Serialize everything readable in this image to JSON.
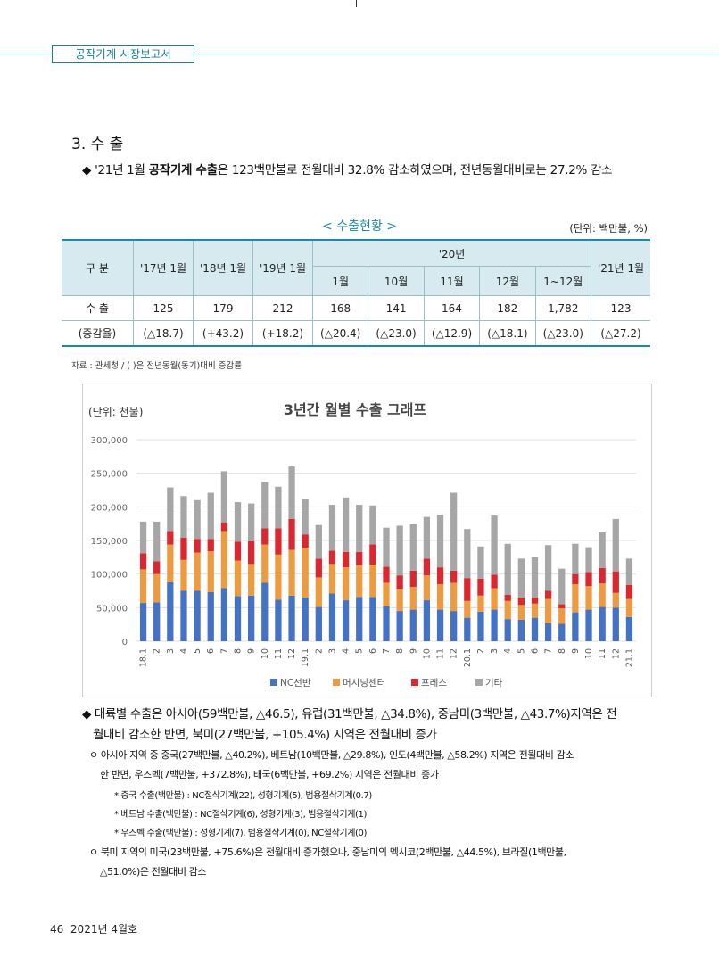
{
  "header": {
    "label": "공작기계 시장보고서"
  },
  "section": {
    "title": "3. 수 출"
  },
  "summary": {
    "prefix": "◆ '21년 1월 ",
    "bold": "공작기계 수출",
    "rest": "은 123백만불로 전월대비 32.8% 감소하였으며, 전년동월대비로는 27.2% 감소"
  },
  "table": {
    "caption": "< 수출현황 >",
    "unit": "(단위: 백만불, %)",
    "col_group": "구 분",
    "years": [
      "'17년 1월",
      "'18년 1월",
      "'19년 1월"
    ],
    "group_2020": "'20년",
    "months_2020": [
      "1월",
      "10월",
      "11월",
      "12월",
      "1~12월"
    ],
    "last_col": "'21년 1월",
    "rows": [
      {
        "label": "수 출",
        "values": [
          "125",
          "179",
          "212",
          "168",
          "141",
          "164",
          "182",
          "1,782",
          "123"
        ]
      },
      {
        "label": "(증감율)",
        "values": [
          "(△18.7)",
          "(+43.2)",
          "(+18.2)",
          "(△20.4)",
          "(△23.0)",
          "(△12.9)",
          "(△18.1)",
          "(△23.0)",
          "(△27.2)"
        ]
      }
    ],
    "source": "자료 : 관세청 / ( )은 전년동월(동기)대비 증감률"
  },
  "chart_data": {
    "type": "bar",
    "stacked": true,
    "title": "3년간 월별 수출 그래프",
    "unit_label": "(단위: 천불)",
    "categories": [
      "18.1",
      "2",
      "3",
      "4",
      "5",
      "6",
      "7",
      "8",
      "9",
      "10",
      "11",
      "12",
      "19.1",
      "2",
      "3",
      "4",
      "5",
      "6",
      "7",
      "8",
      "9",
      "10",
      "11",
      "12",
      "20.1",
      "2",
      "3",
      "4",
      "5",
      "6",
      "7",
      "8",
      "9",
      "10",
      "11",
      "12",
      "21.1"
    ],
    "y_ticks": [
      "300,000",
      "250,000",
      "200,000",
      "150,000",
      "100,000",
      "50,000",
      "0"
    ],
    "ylim": [
      0,
      300000
    ],
    "series": [
      {
        "name": "NC선반",
        "color": "#4472c4",
        "values": [
          57000,
          58000,
          88000,
          75000,
          75000,
          73000,
          79000,
          67000,
          68000,
          87000,
          62000,
          68000,
          65000,
          51000,
          71000,
          61000,
          66000,
          66000,
          52000,
          45000,
          47000,
          61000,
          47000,
          45000,
          35000,
          44000,
          47000,
          33000,
          32000,
          35000,
          27000,
          26000,
          43000,
          47000,
          51000,
          50000,
          36000
        ]
      },
      {
        "name": "머시닝센터",
        "color": "#ed9b40",
        "values": [
          50000,
          42000,
          56000,
          46000,
          57000,
          61000,
          85000,
          53000,
          47000,
          57000,
          67000,
          68000,
          74000,
          44000,
          44000,
          49000,
          47000,
          48000,
          35000,
          33000,
          34000,
          37000,
          38000,
          42000,
          25000,
          24000,
          32000,
          27000,
          22000,
          21000,
          36000,
          23000,
          42000,
          35000,
          35000,
          22000,
          27000
        ]
      },
      {
        "name": "프레스",
        "color": "#d9282f",
        "values": [
          24000,
          19000,
          20000,
          33000,
          20000,
          18000,
          13000,
          28000,
          34000,
          24000,
          39000,
          46000,
          20000,
          28000,
          20000,
          23000,
          20000,
          30000,
          24000,
          20000,
          24000,
          25000,
          25000,
          18000,
          34000,
          25000,
          20000,
          9000,
          11000,
          9000,
          12000,
          6000,
          15000,
          21000,
          23000,
          32000,
          21000
        ]
      },
      {
        "name": "기타",
        "color": "#a6a6a6",
        "values": [
          47000,
          59000,
          65000,
          62000,
          58000,
          69000,
          76000,
          59000,
          56000,
          69000,
          62000,
          78000,
          52000,
          50000,
          68000,
          81000,
          70000,
          58000,
          58000,
          74000,
          69000,
          62000,
          78000,
          116000,
          73000,
          48000,
          88000,
          76000,
          58000,
          60000,
          68000,
          53000,
          45000,
          37000,
          53000,
          78000,
          39000
        ]
      }
    ]
  },
  "body": {
    "region_bullet_line1": "◆ 대륙별 수출은 아시아(59백만불, △46.5), 유럽(31백만불, △34.8%), 중남미(3백만불, △43.7%)지역은 전",
    "region_bullet_line2": "월대비 감소한 반면, 북미(27백만불, +105.4%) 지역은 전월대비 증가",
    "asia_line1": "ㅇ 아시아 지역 중 중국(27백만불, △40.2%), 베트남(10백만불, △29.8%), 인도(4백만불, △58.2%) 지역은 전월대비 감소",
    "asia_line2": "한 반면, 우즈벡(7백만불, +372.8%), 태국(6백만불, +69.2%) 지역은 전월대비 증가",
    "note_china": "* 중국 수출(백만불) : NC절삭기계(22), 성형기계(5), 범용절삭기계(0.7)",
    "note_vietnam": "* 베트남 수출(백만불) : NC절삭기계(6), 성형기계(3), 범용절삭기계(1)",
    "note_uzbek": "* 우즈벡 수출(백만불) : 성형기계(7), 범용절삭기계(0), NC절삭기계(0)",
    "na_line1": "ㅇ 북미 지역의 미국(23백만불, +75.6%)은 전월대비 증가했으나, 중남미의 멕시코(2백만불, △44.5%), 브라질(1백만불,",
    "na_line2": "△51.0%)은 전월대비 감소"
  },
  "footer": {
    "page": "46",
    "issue": "2021년 4월호"
  }
}
